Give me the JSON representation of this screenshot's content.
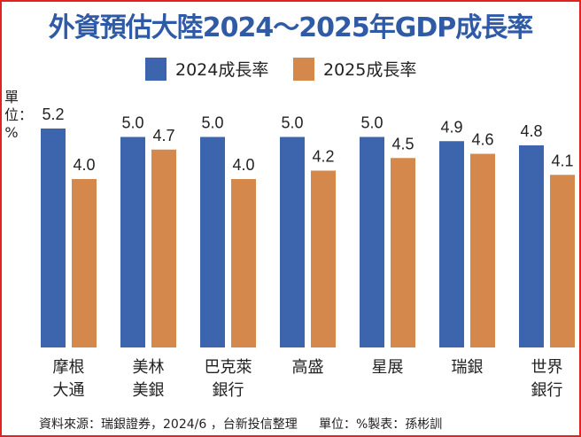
{
  "chart_data": {
    "type": "bar",
    "title": "外資預估大陸2024～2025年GDP成長率",
    "unit_label": "單位：%",
    "categories": [
      [
        "摩根",
        "大通"
      ],
      [
        "美林",
        "美銀"
      ],
      [
        "巴克萊",
        "銀行"
      ],
      [
        "高盛"
      ],
      [
        "星展"
      ],
      [
        "瑞銀"
      ],
      [
        "世界",
        "銀行"
      ]
    ],
    "series": [
      {
        "name": "2024成長率",
        "color": "#3d65ae",
        "values": [
          5.2,
          5.0,
          5.0,
          5.0,
          5.0,
          4.9,
          4.8
        ]
      },
      {
        "name": "2025成長率",
        "color": "#d5884b",
        "values": [
          4.0,
          4.7,
          4.0,
          4.2,
          4.5,
          4.6,
          4.1
        ]
      }
    ],
    "ylim": [
      0,
      5.2
    ],
    "grid": false,
    "legend": "top-center",
    "data_labels": true
  },
  "footer": {
    "source": "資料來源：瑞銀證券，2024/6 ，台新投信整理",
    "credit": "單位：%製表：孫彬訓"
  }
}
